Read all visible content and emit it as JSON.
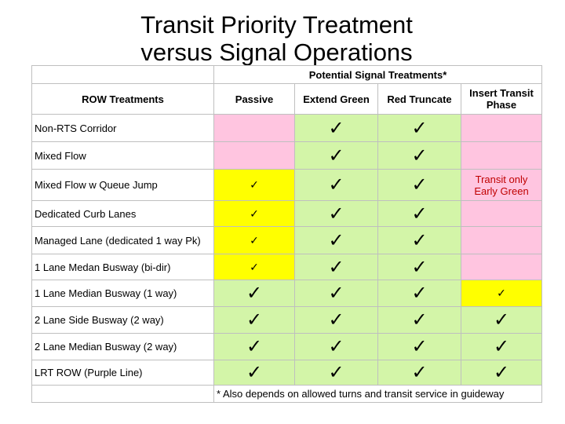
{
  "title": [
    "Transit Priority Treatment",
    "versus Signal Operations"
  ],
  "table": {
    "group_header": "Potential Signal Treatments*",
    "columns": [
      "ROW Treatments",
      "Passive",
      "Extend Green",
      "Red Truncate",
      "Insert Transit Phase"
    ],
    "rows": [
      {
        "label": "Non-RTS Corridor",
        "cells": [
          {
            "fill": "#ffc5e0"
          },
          {
            "fill": "#d3f5a8",
            "text": "✓"
          },
          {
            "fill": "#d3f5a8",
            "text": "✓"
          },
          {
            "fill": "#ffc5e0"
          }
        ]
      },
      {
        "label": "Mixed Flow",
        "cells": [
          {
            "fill": "#ffc5e0"
          },
          {
            "fill": "#d3f5a8",
            "text": "✓"
          },
          {
            "fill": "#d3f5a8",
            "text": "✓"
          },
          {
            "fill": "#ffc5e0"
          }
        ]
      },
      {
        "label": "Mixed Flow w Queue Jump",
        "cells": [
          {
            "fill": "#ffff00",
            "text": "✓",
            "size": "small"
          },
          {
            "fill": "#d3f5a8",
            "text": "✓"
          },
          {
            "fill": "#d3f5a8",
            "text": "✓"
          },
          {
            "fill": "#ffc5e0",
            "text": "Transit only Early Green",
            "color": "#c00000"
          }
        ]
      },
      {
        "label": "Dedicated Curb Lanes",
        "cells": [
          {
            "fill": "#ffff00",
            "text": "✓",
            "size": "small"
          },
          {
            "fill": "#d3f5a8",
            "text": "✓"
          },
          {
            "fill": "#d3f5a8",
            "text": "✓"
          },
          {
            "fill": "#ffc5e0"
          }
        ]
      },
      {
        "label": "Managed Lane (dedicated 1 way Pk)",
        "cells": [
          {
            "fill": "#ffff00",
            "text": "✓",
            "size": "small"
          },
          {
            "fill": "#d3f5a8",
            "text": "✓"
          },
          {
            "fill": "#d3f5a8",
            "text": "✓"
          },
          {
            "fill": "#ffc5e0"
          }
        ]
      },
      {
        "label": "1 Lane Medan Busway (bi-dir)",
        "cells": [
          {
            "fill": "#ffff00",
            "text": "✓",
            "size": "small"
          },
          {
            "fill": "#d3f5a8",
            "text": "✓"
          },
          {
            "fill": "#d3f5a8",
            "text": "✓"
          },
          {
            "fill": "#ffc5e0"
          }
        ]
      },
      {
        "label": "1 Lane Median Busway (1 way)",
        "cells": [
          {
            "fill": "#d3f5a8",
            "text": "✓"
          },
          {
            "fill": "#d3f5a8",
            "text": "✓"
          },
          {
            "fill": "#d3f5a8",
            "text": "✓"
          },
          {
            "fill": "#ffff00",
            "text": "✓",
            "size": "small"
          }
        ]
      },
      {
        "label": "2 Lane Side Busway (2 way)",
        "cells": [
          {
            "fill": "#d3f5a8",
            "text": "✓"
          },
          {
            "fill": "#d3f5a8",
            "text": "✓"
          },
          {
            "fill": "#d3f5a8",
            "text": "✓"
          },
          {
            "fill": "#d3f5a8",
            "text": "✓"
          }
        ]
      },
      {
        "label": "2 Lane Median Busway (2 way)",
        "cells": [
          {
            "fill": "#d3f5a8",
            "text": "✓"
          },
          {
            "fill": "#d3f5a8",
            "text": "✓"
          },
          {
            "fill": "#d3f5a8",
            "text": "✓"
          },
          {
            "fill": "#d3f5a8",
            "text": "✓"
          }
        ]
      },
      {
        "label": "LRT ROW (Purple Line)",
        "cells": [
          {
            "fill": "#d3f5a8",
            "text": "✓"
          },
          {
            "fill": "#d3f5a8",
            "text": "✓"
          },
          {
            "fill": "#d3f5a8",
            "text": "✓"
          },
          {
            "fill": "#d3f5a8",
            "text": "✓"
          }
        ]
      }
    ],
    "footnote": "* Also depends on allowed turns and  transit service in guideway"
  }
}
